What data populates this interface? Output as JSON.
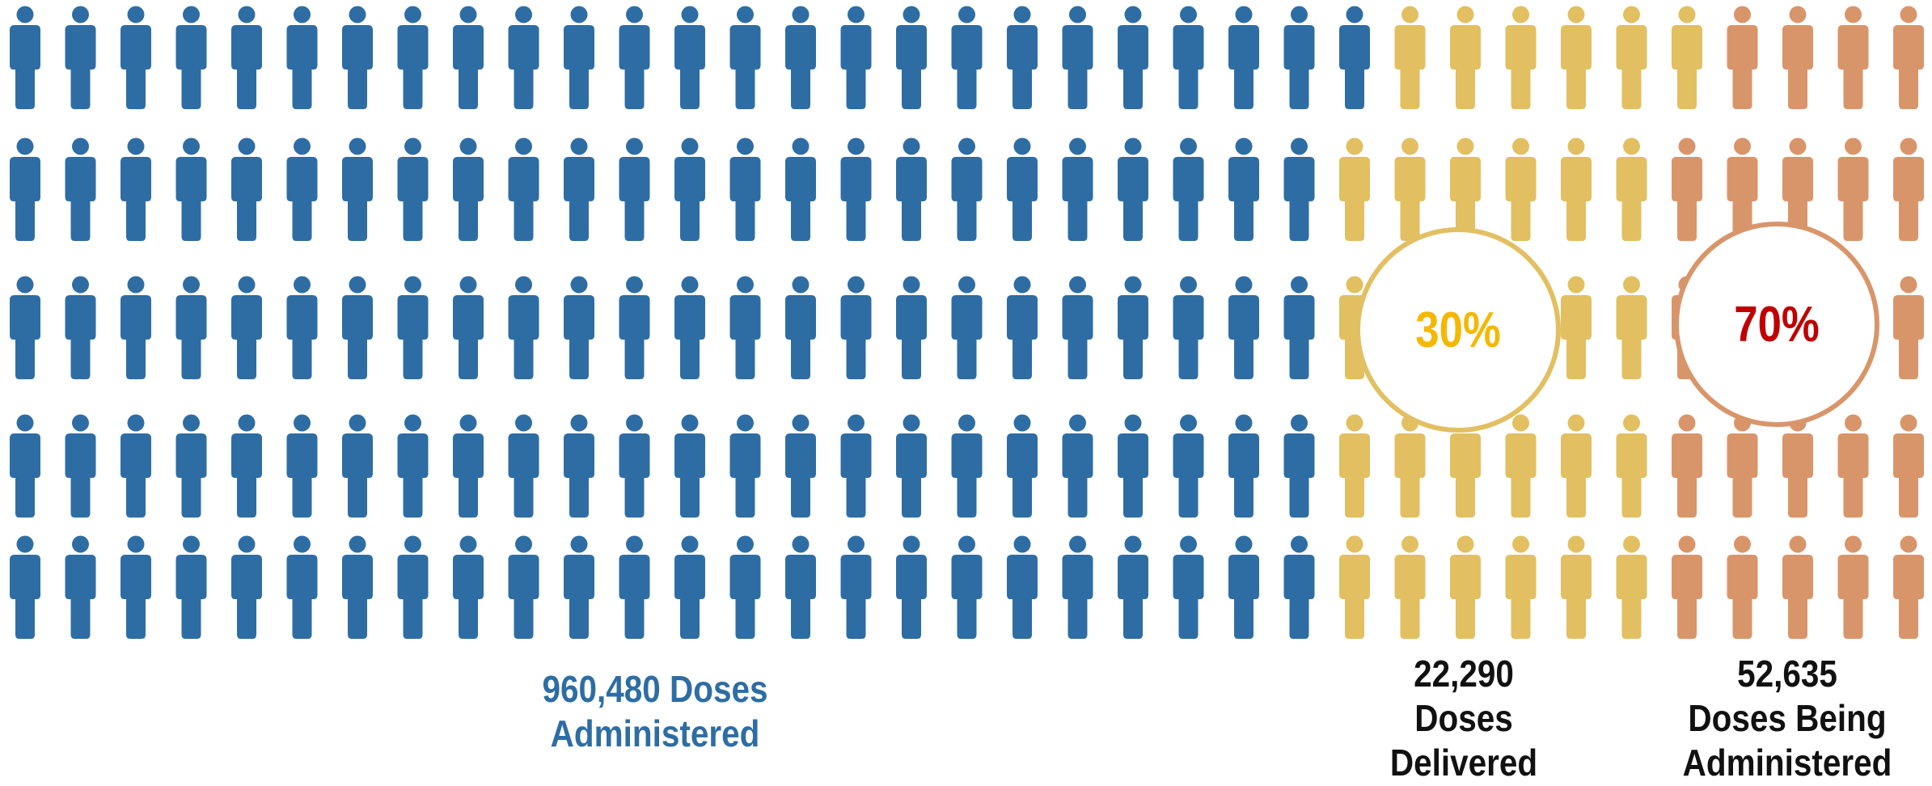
{
  "chart_data": {
    "type": "pictogram",
    "rows": 5,
    "columns": 35,
    "groups": [
      {
        "key": "administered",
        "lines": [
          "960,480 Doses",
          "Administered"
        ],
        "value": 960480,
        "color": "#2e6da4",
        "icon_columns": 24,
        "yellow_extra_rows": 1
      },
      {
        "key": "delivered",
        "lines": [
          "22,290",
          "Doses",
          "Delivered"
        ],
        "value": 22290,
        "percent_label": "30%",
        "color": "#e2bf61",
        "percent_color": "#f4b800",
        "icon_columns": 6
      },
      {
        "key": "being_administered",
        "lines": [
          "52,635",
          "Doses Being",
          "Administered"
        ],
        "value": 52635,
        "percent_label": "70%",
        "color": "#d9956a",
        "percent_color": "#c00000",
        "icon_columns": 5
      }
    ]
  }
}
